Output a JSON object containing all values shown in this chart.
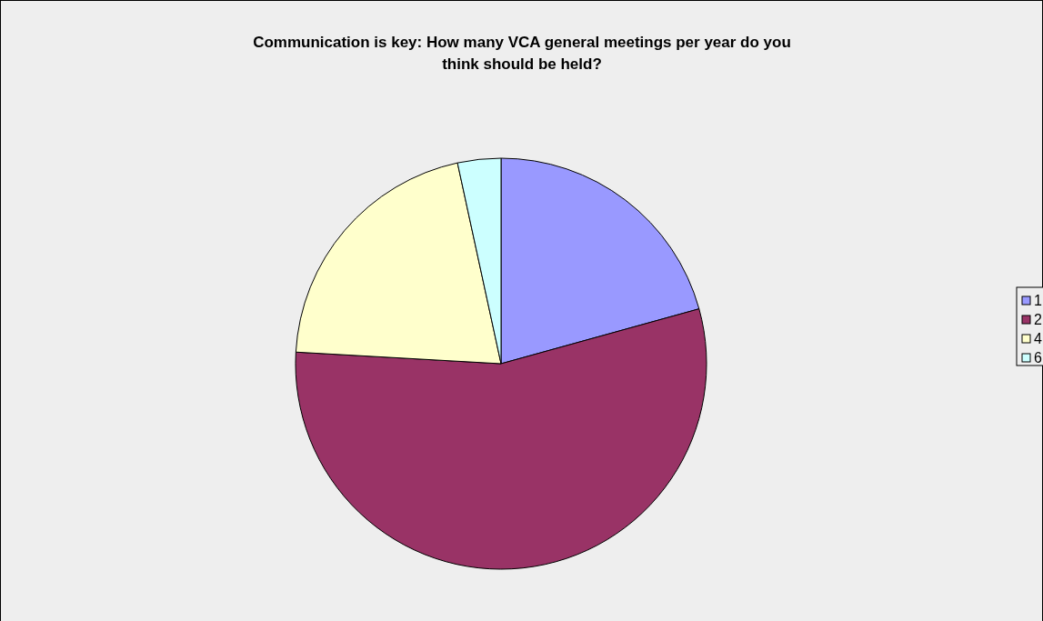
{
  "chart_data": {
    "type": "pie",
    "title": "Communication is key: How many VCA general meetings per year do you think should be held?",
    "categories": [
      "1",
      "2",
      "4",
      "6"
    ],
    "values": [
      20.7,
      55.2,
      20.7,
      3.4
    ],
    "colors": [
      "#9999ff",
      "#993366",
      "#ffffcc",
      "#ccffff"
    ],
    "legend": "right"
  }
}
